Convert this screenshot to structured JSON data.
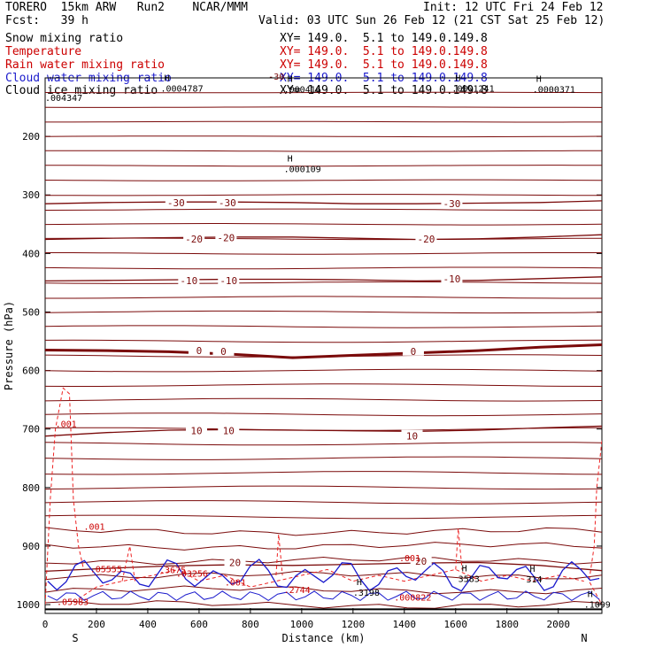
{
  "header": {
    "model": "TORERO  15km ARW   Run2    NCAR/MMM",
    "init": "Init: 12 UTC Fri 24 Feb 12",
    "fcst": "Fcst:   39 h",
    "valid": "Valid: 03 UTC Sun 26 Feb 12 (21 CST Sat 25 Feb 12)"
  },
  "fields": [
    {
      "name": "Snow mixing ratio",
      "xy": "",
      "color": "#000000"
    },
    {
      "name": "Temperature",
      "xy": "XY= 149.0.  5.1 to 149.0.149.8",
      "color": "#cc0000"
    },
    {
      "name": "Rain water mixing ratio",
      "xy": "XY= 149.0.  5.1 to 149.0.149.8",
      "color": "#cc0000"
    },
    {
      "name": "Cloud water mixing ratio",
      "xy": "XY= 149.0.  5.1 to 149.0.149.8",
      "color": "#1a1acc"
    },
    {
      "name": "Cloud ice mixing ratio",
      "xy": "XY= 149.0.  5.1 to 149.0.149.8",
      "color": "#000000"
    }
  ],
  "xy_line1": "XY= 149.0.  5.1 to 149.0.149.8",
  "chart_data": {
    "type": "line",
    "xlabel": "Distance (km)",
    "ylabel": "Pressure (hPa)",
    "xlim": [
      0,
      2170
    ],
    "ylim": [
      1015,
      100
    ],
    "xticks": [
      0,
      200,
      400,
      600,
      800,
      1000,
      1200,
      1400,
      1600,
      1800,
      2000
    ],
    "yticks": [
      200,
      300,
      400,
      500,
      600,
      700,
      800,
      900,
      1000
    ],
    "end_labels": {
      "left": "S",
      "right": "N"
    },
    "temperature_isotherms_C": [
      {
        "label": "-30",
        "p": [
          315,
          313,
          312,
          312,
          313,
          315,
          315,
          314,
          313,
          310
        ]
      },
      {
        "label": "-20",
        "p": [
          376,
          374,
          373,
          372,
          372,
          374,
          376,
          375,
          372,
          368
        ]
      },
      {
        "label": "-10",
        "p": [
          447,
          446,
          445,
          444,
          444,
          445,
          447,
          446,
          443,
          440
        ]
      },
      {
        "label": "0",
        "p": [
          565,
          566,
          568,
          572,
          578,
          574,
          570,
          566,
          560,
          556
        ]
      },
      {
        "label": "10",
        "p": [
          712,
          706,
          702,
          701,
          702,
          703,
          704,
          702,
          698,
          695
        ]
      },
      {
        "label": "20",
        "p": [
          943,
          938,
          934,
          932,
          933,
          931,
          929,
          928,
          933,
          942
        ]
      }
    ],
    "contour_labels": [
      {
        "text": "-30",
        "x": 510,
        "p": 313
      },
      {
        "text": "-30",
        "x": 710,
        "p": 313
      },
      {
        "text": "-30",
        "x": 1585,
        "p": 315
      },
      {
        "text": "-20",
        "x": 580,
        "p": 375
      },
      {
        "text": "-20",
        "x": 705,
        "p": 373
      },
      {
        "text": "-20",
        "x": 1485,
        "p": 375
      },
      {
        "text": "-10",
        "x": 560,
        "p": 446
      },
      {
        "text": "-10",
        "x": 715,
        "p": 446
      },
      {
        "text": "-10",
        "x": 1585,
        "p": 443
      },
      {
        "text": "0",
        "x": 600,
        "p": 566
      },
      {
        "text": "0",
        "x": 695,
        "p": 567
      },
      {
        "text": "0",
        "x": 1435,
        "p": 567
      },
      {
        "text": "10",
        "x": 590,
        "p": 703
      },
      {
        "text": "10",
        "x": 715,
        "p": 703
      },
      {
        "text": "10",
        "x": 1430,
        "p": 712
      },
      {
        "text": "20",
        "x": 740,
        "p": 928
      },
      {
        "text": "20",
        "x": 1465,
        "p": 926
      }
    ],
    "h_markers": [
      {
        "h": "H",
        "value": ".0004787",
        "x": 450,
        "p": 108
      },
      {
        "h": "H",
        "value": ".000416",
        "x": 930,
        "p": 110
      },
      {
        "h": "H",
        "value": ".0001241",
        "x": 1585,
        "p": 108
      },
      {
        "h": "H",
        "value": ".0000371",
        "x": 1900,
        "p": 110
      },
      {
        "h": "H",
        "value": ".000109",
        "x": 930,
        "p": 246
      },
      {
        "h": "",
        "value": ".004347",
        "x": 0,
        "p": 124
      },
      {
        "h": "H",
        "value": "3583",
        "x": 1610,
        "p": 946
      },
      {
        "h": "H",
        "value": ".3198",
        "x": 1200,
        "p": 970
      },
      {
        "h": "H",
        "value": "314",
        "x": 1875,
        "p": 947
      },
      {
        "h": "H",
        "value": ".1099",
        "x": 2100,
        "p": 990
      }
    ],
    "rain_labels": [
      {
        "text": ".001",
        "x": 40,
        "p": 697
      },
      {
        "text": ".001",
        "x": 150,
        "p": 872
      },
      {
        "text": ".001",
        "x": 700,
        "p": 967
      },
      {
        "text": ".001",
        "x": 1380,
        "p": 926
      },
      {
        "text": ".05555",
        "x": 175,
        "p": 945
      },
      {
        "text": ".03256",
        "x": 510,
        "p": 952
      },
      {
        "text": ".3675",
        "x": 445,
        "p": 946
      },
      {
        "text": ".2744",
        "x": 930,
        "p": 980
      },
      {
        "text": ".000822",
        "x": 1360,
        "p": 993
      },
      {
        "text": ".05983",
        "x": 45,
        "p": 1001
      }
    ],
    "minor_labels": {
      "top_left": "-30",
      "top_left_x": 870,
      "top_left_p": 103
    }
  }
}
